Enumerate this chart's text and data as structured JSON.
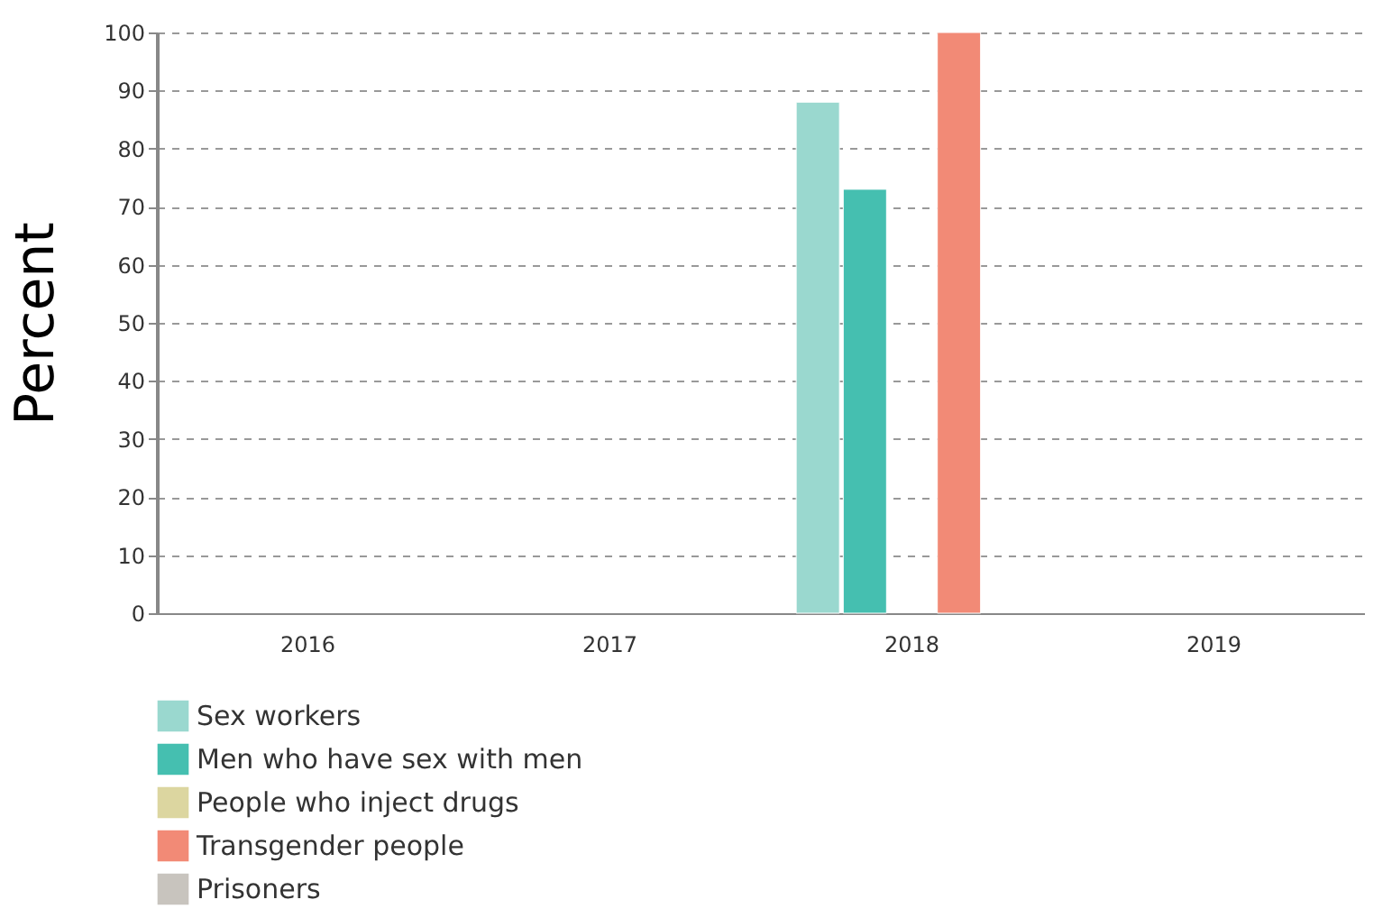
{
  "chart_data": {
    "type": "bar",
    "ylabel": "Percent",
    "categories": [
      "2016",
      "2017",
      "2018",
      "2019"
    ],
    "series": [
      {
        "name": "Sex workers",
        "color": "#9ad8cf",
        "values": [
          null,
          null,
          88,
          null
        ]
      },
      {
        "name": "Men who have sex with men",
        "color": "#45bfb0",
        "values": [
          null,
          null,
          73,
          null
        ]
      },
      {
        "name": "People who inject drugs",
        "color": "#dcd6a0",
        "values": [
          null,
          null,
          null,
          null
        ]
      },
      {
        "name": "Transgender people",
        "color": "#f28a76",
        "values": [
          null,
          null,
          100,
          null
        ]
      },
      {
        "name": "Prisoners",
        "color": "#c8c4be",
        "values": [
          null,
          null,
          null,
          null
        ]
      }
    ],
    "ylim": [
      0,
      100
    ],
    "yticks": [
      0,
      10,
      20,
      30,
      40,
      50,
      60,
      70,
      80,
      90,
      100
    ],
    "grid": "y",
    "legend": "bottom"
  }
}
